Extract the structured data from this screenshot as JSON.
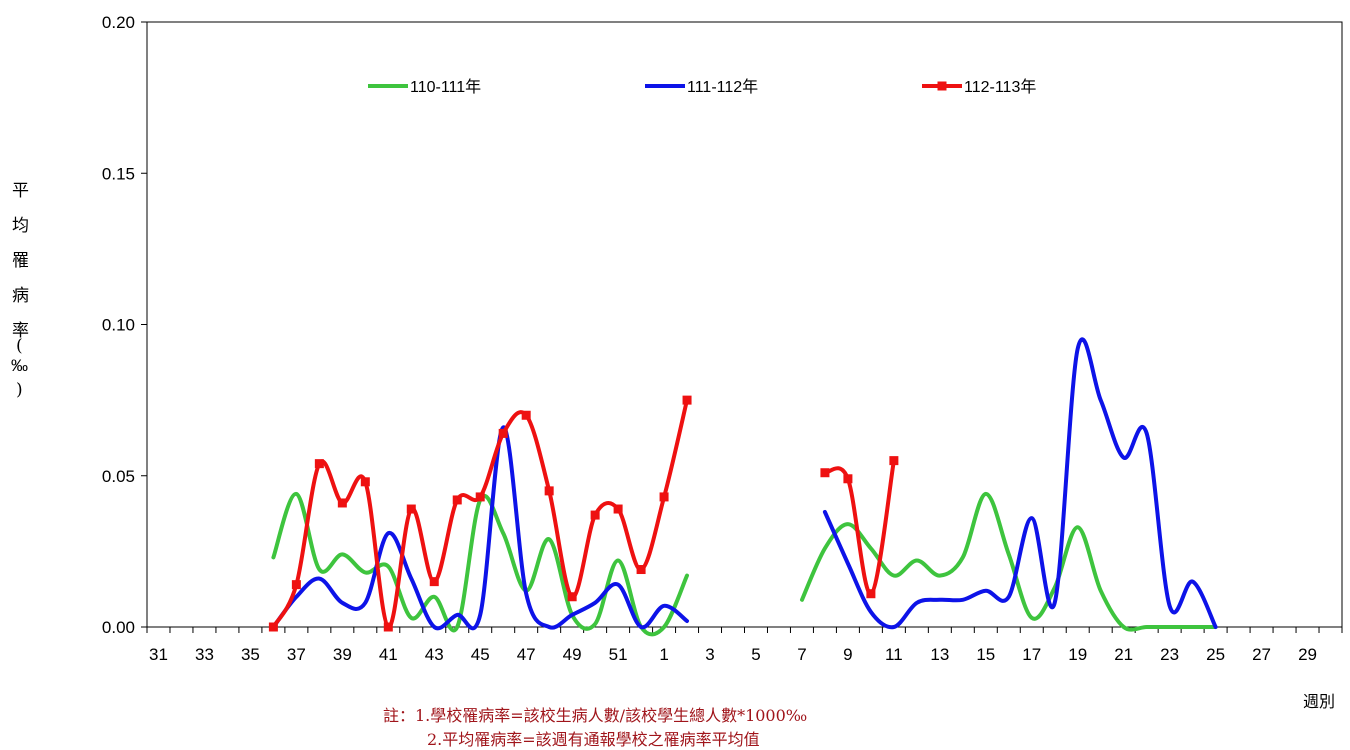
{
  "chart_data": {
    "type": "line",
    "ylabel": "平均罹病率(‰)",
    "xlabel": "週別",
    "ylim": [
      0,
      0.2
    ],
    "yticks": [
      "0.00",
      "0.05",
      "0.10",
      "0.15",
      "0.20"
    ],
    "week_order": [
      31,
      32,
      33,
      34,
      35,
      36,
      37,
      38,
      39,
      40,
      41,
      42,
      43,
      44,
      45,
      46,
      47,
      48,
      49,
      50,
      51,
      52,
      1,
      2,
      3,
      4,
      5,
      6,
      7,
      8,
      9,
      10,
      11,
      12,
      13,
      14,
      15,
      16,
      17,
      18,
      19,
      20,
      21,
      22,
      23,
      24,
      25,
      26,
      27,
      28,
      29,
      30
    ],
    "tick_labels": [
      "31",
      "33",
      "35",
      "37",
      "39",
      "41",
      "43",
      "45",
      "47",
      "49",
      "51",
      "1",
      "3",
      "5",
      "7",
      "9",
      "11",
      "13",
      "15",
      "17",
      "19",
      "21",
      "23",
      "25",
      "27",
      "29"
    ],
    "legend_position": "top",
    "grid": false,
    "series": [
      {
        "name": "110-111年",
        "color": "#3ec43e",
        "markers": false,
        "segments": [
          [
            [
              36,
              0.023
            ],
            [
              37,
              0.044
            ],
            [
              38,
              0.019
            ],
            [
              39,
              0.024
            ],
            [
              40,
              0.018
            ],
            [
              41,
              0.02
            ],
            [
              42,
              0.003
            ],
            [
              43,
              0.01
            ],
            [
              44,
              0.0
            ],
            [
              45,
              0.042
            ],
            [
              46,
              0.031
            ],
            [
              47,
              0.012
            ],
            [
              48,
              0.029
            ],
            [
              49,
              0.004
            ],
            [
              50,
              0.001
            ],
            [
              51,
              0.022
            ],
            [
              52,
              0.0
            ],
            [
              1,
              0.0
            ],
            [
              2,
              0.017
            ]
          ],
          [
            [
              7,
              0.009
            ],
            [
              8,
              0.026
            ],
            [
              9,
              0.034
            ],
            [
              10,
              0.026
            ],
            [
              11,
              0.017
            ],
            [
              12,
              0.022
            ],
            [
              13,
              0.017
            ],
            [
              14,
              0.023
            ],
            [
              15,
              0.044
            ],
            [
              16,
              0.024
            ],
            [
              17,
              0.003
            ],
            [
              18,
              0.013
            ],
            [
              19,
              0.033
            ],
            [
              20,
              0.012
            ],
            [
              21,
              0.0
            ],
            [
              22,
              0.0
            ],
            [
              23,
              0.0
            ],
            [
              24,
              0.0
            ],
            [
              25,
              0.0
            ]
          ]
        ]
      },
      {
        "name": "111-112年",
        "color": "#0d13e8",
        "markers": false,
        "segments": [
          [
            [
              36,
              0.0
            ],
            [
              37,
              0.01
            ],
            [
              38,
              0.016
            ],
            [
              39,
              0.008
            ],
            [
              40,
              0.008
            ],
            [
              41,
              0.031
            ],
            [
              42,
              0.016
            ],
            [
              43,
              0.0
            ],
            [
              44,
              0.004
            ],
            [
              45,
              0.004
            ],
            [
              46,
              0.066
            ],
            [
              47,
              0.011
            ],
            [
              48,
              0.0
            ],
            [
              49,
              0.004
            ],
            [
              50,
              0.008
            ],
            [
              51,
              0.014
            ],
            [
              52,
              0.0
            ],
            [
              1,
              0.007
            ],
            [
              2,
              0.002
            ]
          ],
          [
            [
              8,
              0.038
            ],
            [
              9,
              0.021
            ],
            [
              10,
              0.005
            ],
            [
              11,
              0.0
            ],
            [
              12,
              0.008
            ],
            [
              13,
              0.009
            ],
            [
              14,
              0.009
            ],
            [
              15,
              0.012
            ],
            [
              16,
              0.01
            ],
            [
              17,
              0.036
            ],
            [
              18,
              0.008
            ],
            [
              19,
              0.092
            ],
            [
              20,
              0.075
            ],
            [
              21,
              0.056
            ],
            [
              22,
              0.064
            ],
            [
              23,
              0.007
            ],
            [
              24,
              0.015
            ],
            [
              25,
              0.0
            ]
          ]
        ]
      },
      {
        "name": "112-113年",
        "color": "#ee1111",
        "markers": true,
        "segments": [
          [
            [
              36,
              0.0
            ],
            [
              37,
              0.014
            ],
            [
              38,
              0.054
            ],
            [
              39,
              0.041
            ],
            [
              40,
              0.048
            ],
            [
              41,
              0.0
            ],
            [
              42,
              0.039
            ],
            [
              43,
              0.015
            ],
            [
              44,
              0.042
            ],
            [
              45,
              0.043
            ],
            [
              46,
              0.064
            ],
            [
              47,
              0.07
            ],
            [
              48,
              0.045
            ],
            [
              49,
              0.01
            ],
            [
              50,
              0.037
            ],
            [
              51,
              0.039
            ],
            [
              52,
              0.019
            ],
            [
              1,
              0.043
            ],
            [
              2,
              0.075
            ]
          ],
          [
            [
              8,
              0.051
            ],
            [
              9,
              0.049
            ],
            [
              10,
              0.011
            ],
            [
              11,
              0.055
            ]
          ]
        ]
      }
    ]
  },
  "labels": {
    "ylabel_chars": [
      "平",
      "均",
      "罹",
      "病",
      "率",
      "(",
      "‰",
      ")"
    ],
    "xlabel": "週別",
    "note_line1": "註：1.學校罹病率=該校生病人數/該校學生總人數*1000‰",
    "note_line2": "2.平均罹病率=該週有通報學校之罹病率平均值"
  }
}
